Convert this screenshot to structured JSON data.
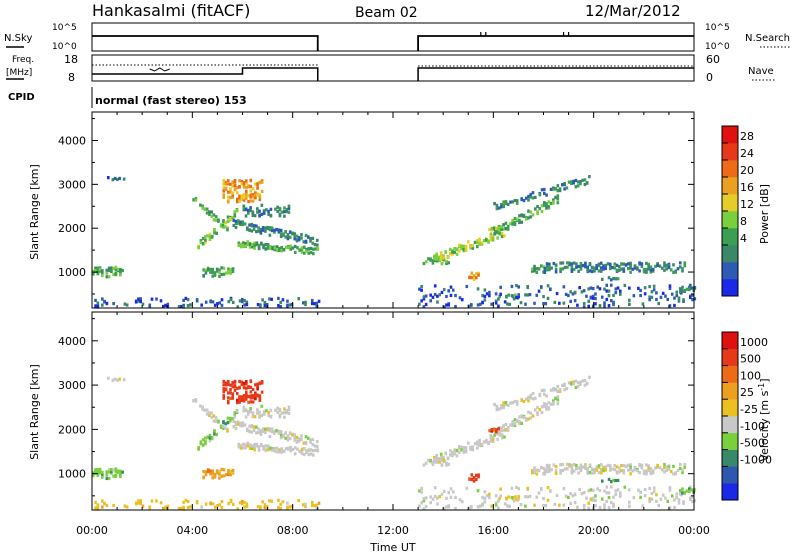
{
  "header": {
    "station": "Hankasalmi (fitACF)",
    "beam": "Beam 02",
    "date": "12/Mar/2012"
  },
  "strip_panels": {
    "nsky_label": "N.Sky",
    "nsearch_label": "N.Search",
    "nsky_ticks": [
      "10^5",
      "10^0"
    ],
    "nsearch_ticks": [
      "10^5",
      "10^0"
    ],
    "freq_label": "Freq.",
    "freq_unit": "[MHz]",
    "freq_ticks": [
      "18",
      "8"
    ],
    "nave_label": "Nave",
    "nave_ticks": [
      "60",
      "0"
    ],
    "cpid_label": "CPID",
    "cpid_text": "normal (fast stereo) 153"
  },
  "chart_data": [
    {
      "type": "heatmap",
      "title": "",
      "xlabel": "Time UT",
      "ylabel": "Slant Range [km]",
      "quantity": "Power [dB]",
      "xlim": [
        0,
        24
      ],
      "ylim": [
        180,
        4650
      ],
      "x_tick_labels": [
        "00:00",
        "04:00",
        "08:00",
        "12:00",
        "16:00",
        "20:00",
        "00:00"
      ],
      "y_ticks": [
        1000,
        2000,
        3000,
        4000
      ],
      "colorbar": {
        "label": "Power [dB]",
        "ticks": [
          "28",
          "24",
          "20",
          "16",
          "12",
          "8",
          "4"
        ],
        "colors": [
          "#1a28e8",
          "#2c5ab4",
          "#3a8868",
          "#3c9e52",
          "#7ad03c",
          "#e6cc28",
          "#eaa020",
          "#ec6a18",
          "#e8381a",
          "#e01010"
        ]
      },
      "echo_regions_h_km": [
        {
          "t": [
            0.5,
            1.3
          ],
          "r": [
            3050,
            3200
          ],
          "level": 1
        },
        {
          "t": [
            0.0,
            1.2
          ],
          "r": [
            850,
            1150
          ],
          "level": 3
        },
        {
          "t": [
            0.0,
            9.0
          ],
          "r": [
            200,
            420
          ],
          "level": 1
        },
        {
          "t": [
            4.0,
            6.0
          ],
          "r": [
            1400,
            2900
          ],
          "level": 4
        },
        {
          "t": [
            4.8,
            6.8
          ],
          "r": [
            2300,
            3300
          ],
          "level": 6
        },
        {
          "t": [
            5.5,
            9.0
          ],
          "r": [
            1300,
            2200
          ],
          "level": 2
        },
        {
          "t": [
            4.5,
            5.5
          ],
          "r": [
            800,
            1200
          ],
          "level": 3
        },
        {
          "t": [
            13.0,
            19.8
          ],
          "r": [
            1000,
            3200
          ],
          "level": 3
        },
        {
          "t": [
            18.0,
            23.5
          ],
          "r": [
            900,
            1300
          ],
          "level": 2
        },
        {
          "t": [
            13.0,
            24.0
          ],
          "r": [
            200,
            700
          ],
          "level": 1
        }
      ]
    },
    {
      "type": "heatmap",
      "title": "",
      "xlabel": "Time UT",
      "ylabel": "Slant Range [km]",
      "quantity": "Velocity [m s^-1]",
      "xlim": [
        0,
        24
      ],
      "ylim": [
        180,
        4650
      ],
      "x_tick_labels": [
        "00:00",
        "04:00",
        "08:00",
        "12:00",
        "16:00",
        "20:00",
        "00:00"
      ],
      "y_ticks": [
        1000,
        2000,
        3000,
        4000
      ],
      "colorbar": {
        "label": "Velocity [m s^-1]",
        "ticks": [
          "1000",
          "500",
          "100",
          "25",
          "-25",
          "-100",
          "-500",
          "-1000"
        ],
        "colors": [
          "#1a28e8",
          "#2c58ae",
          "#38886a",
          "#7ad03c",
          "#c8c8c8",
          "#ecc020",
          "#eca020",
          "#ec6a18",
          "#e8381a",
          "#e01010"
        ]
      }
    }
  ]
}
